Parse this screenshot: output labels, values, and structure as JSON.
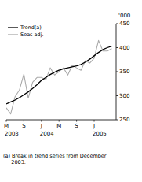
{
  "chart_data": {
    "type": "line",
    "y_label": "'000",
    "annotations": [
      "(a) Break in trend series from December\n     2003."
    ],
    "categories": [
      "M",
      null,
      null,
      null,
      "S",
      null,
      null,
      null,
      "J",
      null,
      null,
      null,
      "M",
      null,
      null,
      null,
      "S",
      null,
      null,
      null,
      "J",
      null,
      null,
      null,
      null
    ],
    "x_groups": [
      {
        "label": "2003",
        "at": 0
      },
      {
        "label": "2004",
        "at": 8
      },
      {
        "label": "2005",
        "at": 20
      }
    ],
    "series": [
      {
        "name": "Trend(a)",
        "color": "#000000",
        "values": [
          283,
          287,
          291,
          296,
          302,
          308,
          315,
          323,
          332,
          338,
          344,
          349,
          353,
          356,
          358,
          360,
          362,
          365,
          370,
          376,
          383,
          390,
          396,
          400,
          403
        ]
      },
      {
        "name": "Seas adj.",
        "color": "#aaaaaa",
        "values": [
          275,
          262,
          298,
          312,
          345,
          295,
          328,
          338,
          338,
          333,
          358,
          343,
          350,
          358,
          343,
          363,
          358,
          353,
          373,
          368,
          378,
          415,
          393,
          393,
          398
        ]
      }
    ],
    "ylim": [
      250,
      450
    ],
    "yticks": [
      250,
      300,
      350,
      400,
      450
    ],
    "grid": false,
    "legend": "top-left"
  }
}
